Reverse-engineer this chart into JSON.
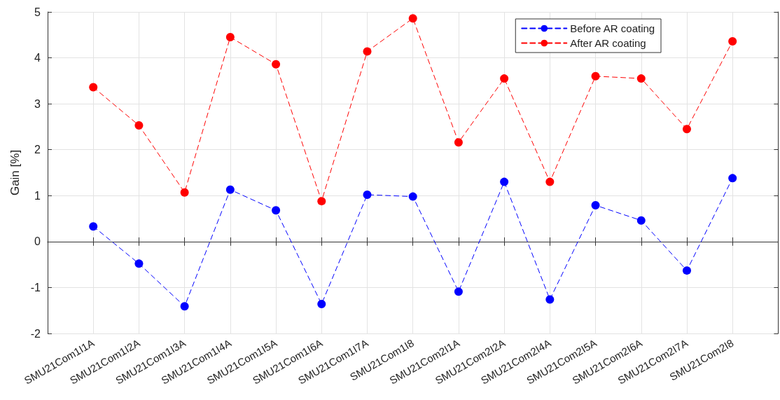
{
  "chart_data": {
    "type": "line",
    "ylabel": "Gain [%]",
    "categories": [
      "SMU21Com1I1A",
      "SMU21Com1I2A",
      "SMU21Com1I3A",
      "SMU21Com1I4A",
      "SMU21Com1I5A",
      "SMU21Com1I6A",
      "SMU21Com1I7A",
      "SMU21Com1I8",
      "SMU21Com2I1A",
      "SMU21Com2I2A",
      "SMU21Com2I4A",
      "SMU21Com2I5A",
      "SMU21Com2I6A",
      "SMU21Com2I7A",
      "SMU21Com2I8"
    ],
    "series": [
      {
        "name": "Before AR coating",
        "color": "#0000ff",
        "values": [
          0.33,
          -0.48,
          -1.41,
          1.13,
          0.68,
          -1.36,
          1.02,
          0.98,
          -1.09,
          1.3,
          -1.26,
          0.79,
          0.46,
          -0.63,
          1.38
        ]
      },
      {
        "name": "After AR coating",
        "color": "#ff0000",
        "values": [
          3.36,
          2.53,
          1.07,
          4.45,
          3.86,
          0.88,
          4.14,
          4.86,
          2.16,
          3.55,
          1.3,
          3.6,
          3.55,
          2.45,
          4.36
        ]
      }
    ],
    "ylim": [
      -2,
      5
    ],
    "yticks": [
      -2,
      -1,
      0,
      1,
      2,
      3,
      4,
      5
    ],
    "grid": true,
    "legend": "top right",
    "marker": "circle",
    "line_style": "dashed"
  }
}
